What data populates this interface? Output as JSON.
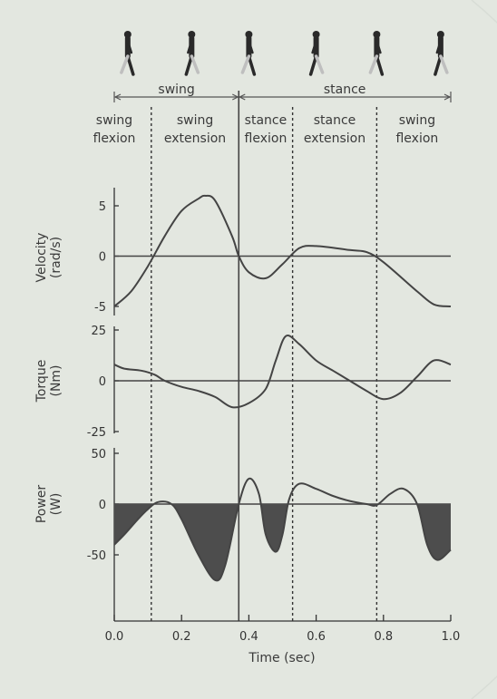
{
  "phases": {
    "top": [
      {
        "label": "swing",
        "start": 0.0,
        "end": 0.37
      },
      {
        "label": "stance",
        "start": 0.37,
        "end": 1.0
      }
    ],
    "sub": [
      {
        "line1": "swing",
        "line2": "flexion",
        "center": 0.0
      },
      {
        "line1": "swing",
        "line2": "extension",
        "center": 0.24
      },
      {
        "line1": "stance",
        "line2": "flexion",
        "center": 0.45
      },
      {
        "line1": "stance",
        "line2": "extension",
        "center": 0.655
      },
      {
        "line1": "swing",
        "line2": "flexion",
        "center": 0.9
      }
    ],
    "boundaries_dashed": [
      0.11,
      0.53,
      0.78
    ],
    "boundary_solid": 0.37
  },
  "colors": {
    "curve": "#444444",
    "fill": "#4d4d4d",
    "background": "#e3e7e0"
  },
  "chart_data": [
    {
      "type": "line",
      "name": "velocity",
      "ylabel": "Velocity",
      "yunit": "(rad/s)",
      "ylim": [
        -5.2,
        6
      ],
      "yticks": [
        {
          "v": 5,
          "t": "5"
        },
        {
          "v": 0,
          "t": "0"
        },
        {
          "v": -5,
          "t": "-5"
        }
      ],
      "x": [
        0.0,
        0.05,
        0.1,
        0.15,
        0.2,
        0.25,
        0.27,
        0.3,
        0.35,
        0.37,
        0.4,
        0.45,
        0.5,
        0.55,
        0.6,
        0.7,
        0.75,
        0.8,
        0.9,
        0.95,
        1.0
      ],
      "values": [
        -5.0,
        -3.5,
        -1.0,
        2.0,
        4.5,
        5.7,
        6.0,
        5.5,
        2.0,
        0.0,
        -1.6,
        -2.2,
        -0.8,
        0.8,
        1.0,
        0.6,
        0.4,
        -0.6,
        -3.5,
        -4.8,
        -5.0
      ]
    },
    {
      "type": "line",
      "name": "torque",
      "ylabel": "Torque",
      "yunit": "(Nm)",
      "ylim": [
        -25,
        25
      ],
      "yticks": [
        {
          "v": 25,
          "t": "25"
        },
        {
          "v": 0,
          "t": "0"
        },
        {
          "v": -25,
          "t": "-25"
        }
      ],
      "x": [
        0.0,
        0.03,
        0.08,
        0.12,
        0.15,
        0.2,
        0.25,
        0.3,
        0.35,
        0.4,
        0.45,
        0.48,
        0.51,
        0.55,
        0.6,
        0.65,
        0.7,
        0.75,
        0.8,
        0.85,
        0.9,
        0.95,
        1.0
      ],
      "values": [
        8,
        6,
        5,
        3,
        0,
        -3,
        -5,
        -8,
        -13,
        -11,
        -4,
        10,
        22,
        18,
        10,
        5,
        0,
        -5,
        -9,
        -6,
        2,
        10,
        8
      ]
    },
    {
      "type": "area",
      "name": "power",
      "ylabel": "Power",
      "yunit": "(W)",
      "ylim": [
        -110,
        50
      ],
      "yticks": [
        {
          "v": 50,
          "t": "50"
        },
        {
          "v": 0,
          "t": "0"
        },
        {
          "v": -50,
          "t": "-50"
        }
      ],
      "x": [
        0.0,
        0.03,
        0.07,
        0.1,
        0.13,
        0.17,
        0.2,
        0.25,
        0.3,
        0.33,
        0.37,
        0.4,
        0.43,
        0.45,
        0.48,
        0.5,
        0.52,
        0.55,
        0.6,
        0.65,
        0.7,
        0.75,
        0.78,
        0.82,
        0.86,
        0.9,
        0.93,
        0.96,
        1.0
      ],
      "values": [
        -40,
        -30,
        -15,
        -5,
        2,
        0,
        -15,
        -50,
        -75,
        -60,
        0,
        25,
        10,
        -30,
        -47,
        -30,
        5,
        20,
        15,
        8,
        3,
        0,
        -1,
        10,
        15,
        0,
        -40,
        -55,
        -45
      ],
      "xlabel": "Time (sec)",
      "xticks": [
        {
          "v": 0.0,
          "t": "0.0"
        },
        {
          "v": 0.2,
          "t": "0.2"
        },
        {
          "v": 0.4,
          "t": "0.4"
        },
        {
          "v": 0.6,
          "t": "0.6"
        },
        {
          "v": 0.8,
          "t": "0.8"
        },
        {
          "v": 1.0,
          "t": "1.0"
        }
      ],
      "xlim": [
        0,
        1
      ]
    }
  ]
}
